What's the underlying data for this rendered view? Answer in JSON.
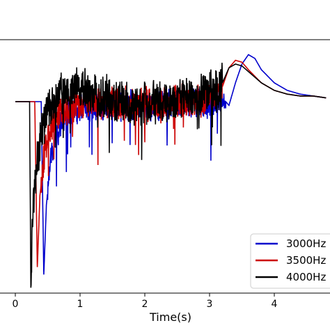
{
  "chart_data": {
    "type": "line",
    "title": "",
    "xlabel": "Time(s)",
    "ylabel": "",
    "xlim": [
      -0.2,
      4.8
    ],
    "xticks": [
      "0",
      "1",
      "2",
      "3",
      "4"
    ],
    "grid": false,
    "legend_position": "bottom-right",
    "series": [
      {
        "name": "3000Hz",
        "color": "#0000cc",
        "x": [
          0,
          0.4,
          0.44,
          0.48,
          0.55,
          0.62,
          0.7,
          0.8,
          0.9,
          1.0,
          1.2,
          1.4,
          1.6,
          1.8,
          2.0,
          2.2,
          2.4,
          2.6,
          2.8,
          3.0,
          3.1,
          3.2,
          3.3,
          3.4,
          3.5,
          3.6,
          3.7,
          3.8,
          4.0,
          4.2,
          4.4,
          4.6,
          4.8
        ],
        "y": [
          0,
          0,
          -0.92,
          -0.55,
          -0.3,
          -0.18,
          -0.12,
          -0.08,
          -0.05,
          -0.03,
          -0.02,
          -0.02,
          -0.02,
          -0.02,
          -0.02,
          -0.02,
          -0.02,
          -0.01,
          -0.01,
          -0.01,
          0.0,
          0.02,
          -0.02,
          0.1,
          0.2,
          0.25,
          0.23,
          0.17,
          0.1,
          0.06,
          0.04,
          0.03,
          0.02
        ],
        "noise_amplitude": 0.09,
        "noise_start": 0.5,
        "noise_end": 3.25
      },
      {
        "name": "3500Hz",
        "color": "#cc0000",
        "x": [
          0,
          0.3,
          0.34,
          0.38,
          0.45,
          0.52,
          0.6,
          0.7,
          0.8,
          0.9,
          1.0,
          1.2,
          1.4,
          1.6,
          1.8,
          2.0,
          2.2,
          2.4,
          2.6,
          2.8,
          3.0,
          3.1,
          3.2,
          3.3,
          3.4,
          3.5,
          3.6,
          3.8,
          4.0,
          4.2,
          4.4,
          4.6,
          4.8
        ],
        "y": [
          0,
          0,
          -0.88,
          -0.5,
          -0.28,
          -0.16,
          -0.1,
          -0.06,
          -0.04,
          -0.02,
          -0.01,
          -0.01,
          -0.01,
          -0.01,
          -0.01,
          -0.01,
          -0.01,
          0.0,
          0.0,
          0.0,
          0.02,
          0.05,
          0.08,
          0.18,
          0.22,
          0.21,
          0.17,
          0.1,
          0.06,
          0.04,
          0.03,
          0.03,
          0.02
        ],
        "noise_amplitude": 0.1,
        "noise_start": 0.4,
        "noise_end": 3.2
      },
      {
        "name": "4000Hz",
        "color": "#000000",
        "x": [
          0,
          0.22,
          0.24,
          0.28,
          0.34,
          0.42,
          0.5,
          0.6,
          0.7,
          0.8,
          0.9,
          1.0,
          1.1,
          1.2,
          1.4,
          1.6,
          1.8,
          2.0,
          2.2,
          2.4,
          2.6,
          2.8,
          2.9,
          3.0,
          3.1,
          3.2,
          3.3,
          3.4,
          3.5,
          3.6,
          3.8,
          4.0,
          4.2,
          4.4,
          4.6,
          4.8
        ],
        "y": [
          0,
          0,
          -0.95,
          -0.55,
          -0.3,
          -0.15,
          -0.05,
          0.0,
          0.04,
          0.06,
          0.07,
          0.07,
          0.06,
          0.04,
          0.02,
          0.0,
          -0.01,
          -0.01,
          0.0,
          0.0,
          0.01,
          0.02,
          0.05,
          0.06,
          0.05,
          0.1,
          0.18,
          0.2,
          0.19,
          0.16,
          0.1,
          0.06,
          0.04,
          0.03,
          0.03,
          0.02
        ],
        "noise_amplitude": 0.13,
        "noise_start": 0.24,
        "noise_end": 3.2
      }
    ]
  }
}
